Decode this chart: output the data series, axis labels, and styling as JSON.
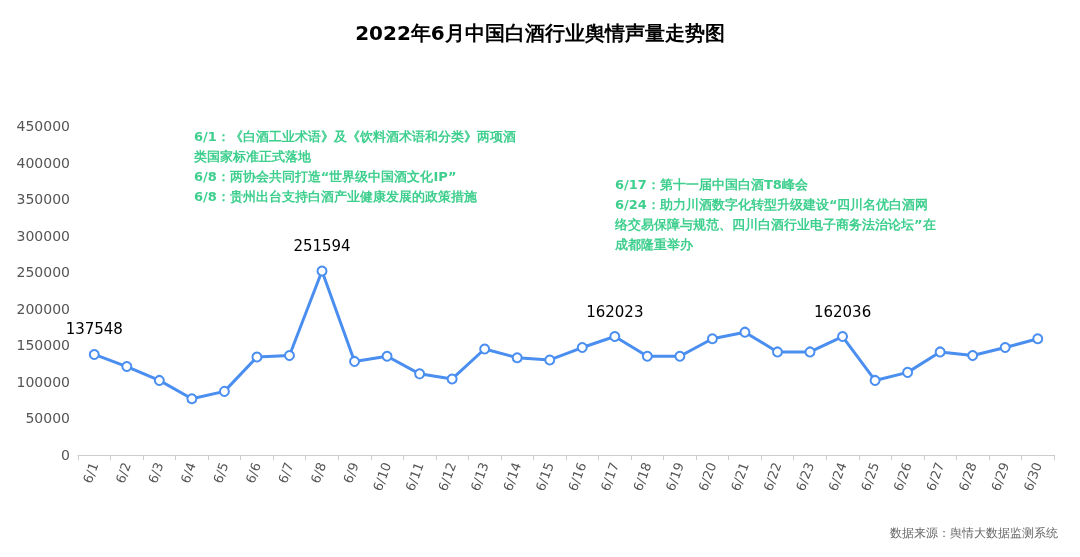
{
  "chart_data": {
    "type": "line",
    "title": "2022年6月中国白酒行业舆情声量走势图",
    "categories": [
      "6/1",
      "6/2",
      "6/3",
      "6/4",
      "6/5",
      "6/6",
      "6/7",
      "6/8",
      "6/9",
      "6/10",
      "6/11",
      "6/12",
      "6/13",
      "6/14",
      "6/15",
      "6/16",
      "6/17",
      "6/18",
      "6/19",
      "6/20",
      "6/21",
      "6/22",
      "6/23",
      "6/24",
      "6/25",
      "6/26",
      "6/27",
      "6/28",
      "6/29",
      "6/30"
    ],
    "series": [
      {
        "color": "#4a8ef0",
        "values": [
          137548,
          121000,
          102000,
          77000,
          87000,
          134000,
          136000,
          251594,
          128000,
          135000,
          111000,
          104000,
          145000,
          133000,
          130000,
          147000,
          162023,
          135000,
          135000,
          159000,
          168000,
          141000,
          141000,
          162036,
          102000,
          113000,
          141000,
          136000,
          147000,
          159000
        ],
        "value_labels": [
          "137548",
          null,
          null,
          null,
          null,
          null,
          null,
          "251594",
          null,
          null,
          null,
          null,
          null,
          null,
          null,
          null,
          "162023",
          null,
          null,
          null,
          null,
          null,
          null,
          "162036",
          null,
          null,
          null,
          null,
          null,
          null
        ]
      }
    ],
    "ylim": [
      0,
      450000
    ],
    "yticks": [
      0,
      50000,
      100000,
      150000,
      200000,
      250000,
      300000,
      350000,
      400000,
      450000
    ],
    "grid": false,
    "marker": "circle",
    "line_style": "solid",
    "annotations": [
      "6/1：《白酒工业术语》及《饮料酒术语和分类》两项酒类国家标准正式落地",
      "6/8：两协会共同打造“世界级中国酒文化IP”",
      "6/8：贵州出台支持白酒产业健康发展的政策措施",
      "6/17：第十一届中国白酒T8峰会",
      "6/24：助力川酒数字化转型升级建设“四川名优白酒网络交易保障与规范、四川白酒行业电子商务法治论坛”在成都隆重举办",
      "数据来源：舆情大数据监测系统"
    ]
  }
}
